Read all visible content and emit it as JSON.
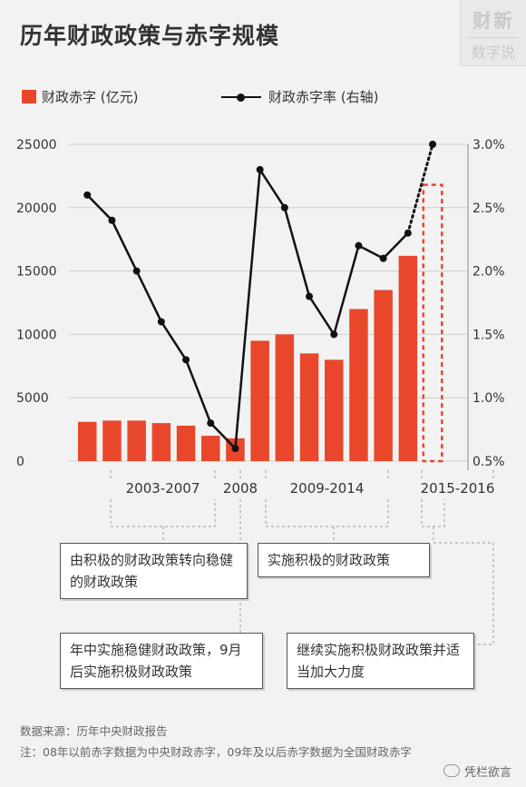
{
  "title": "历年财政政策与赤字规模",
  "logo": {
    "line1": "财新",
    "line2": "数字说"
  },
  "legend": {
    "bar": "财政赤字 (亿元)",
    "line": "财政赤字率 (右轴)"
  },
  "colors": {
    "bar": "#e8472c",
    "line": "#111111",
    "grid": "#cfcfcf",
    "text": "#333333"
  },
  "chart_data": {
    "type": "bar",
    "left_axis": {
      "ticks": [
        "25000",
        "20000",
        "15000",
        "10000",
        "5000",
        "0"
      ],
      "range": [
        0,
        25000
      ]
    },
    "right_axis": {
      "ticks": [
        "3.0%",
        "2.5%",
        "2.0%",
        "1.5%",
        "1.0%",
        "0.5%"
      ],
      "range": [
        0.5,
        3.0
      ]
    },
    "bar_values": [
      3100,
      3200,
      3200,
      3000,
      2800,
      2000,
      1800,
      9500,
      10000,
      8500,
      8000,
      12000,
      13500,
      16200,
      21800
    ],
    "bar_projected": [
      false,
      false,
      false,
      false,
      false,
      false,
      false,
      false,
      false,
      false,
      false,
      false,
      false,
      false,
      true
    ],
    "line_values": [
      2.6,
      2.4,
      2.0,
      1.6,
      1.3,
      0.8,
      0.6,
      2.8,
      2.5,
      1.8,
      1.5,
      2.2,
      2.1,
      2.3,
      3.0
    ],
    "line_projected_from": 13,
    "grid": true,
    "periods": [
      {
        "label": "2003-2007",
        "from": 1,
        "to": 5
      },
      {
        "label": "2008",
        "from": 6,
        "to": 6
      },
      {
        "label": "2009-2014",
        "from": 7,
        "to": 12
      },
      {
        "label": "2015-2016",
        "from": 13,
        "to": 14
      }
    ]
  },
  "annotations": [
    {
      "text": "由积极的财政政策转向稳健的财政政策"
    },
    {
      "text": "实施积极的财政政策"
    },
    {
      "text": "年中实施稳健财政政策，9月后实施积极财政政策"
    },
    {
      "text": "继续实施积极财政政策并适当加大力度"
    }
  ],
  "source": "数据来源：历年中央财政报告",
  "note": "注：08年以前赤字数据为中央财政赤字，09年及以后赤字数据为全国财政赤字",
  "watermark": "凭栏欲言"
}
